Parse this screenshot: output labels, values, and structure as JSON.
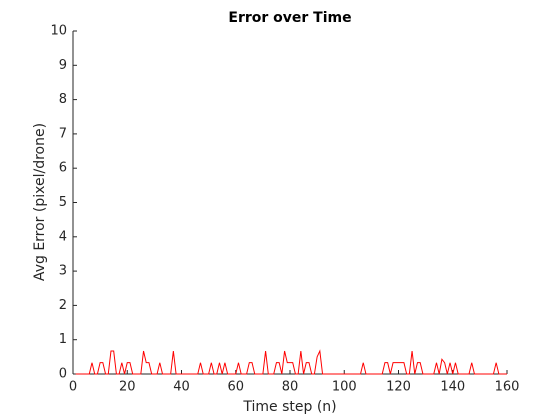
{
  "chart_data": {
    "type": "line",
    "title": "Error over Time",
    "x_label": "Time step (n)",
    "y_label": "Avg Error (pixel/drone)",
    "x": [
      1,
      2,
      3,
      4,
      5,
      6,
      7,
      8,
      9,
      10,
      11,
      12,
      13,
      14,
      15,
      16,
      17,
      18,
      19,
      20,
      21,
      22,
      23,
      24,
      25,
      26,
      27,
      28,
      29,
      30,
      31,
      32,
      33,
      34,
      35,
      36,
      37,
      38,
      39,
      40,
      41,
      42,
      43,
      44,
      45,
      46,
      47,
      48,
      49,
      50,
      51,
      52,
      53,
      54,
      55,
      56,
      57,
      58,
      59,
      60,
      61,
      62,
      63,
      64,
      65,
      66,
      67,
      68,
      69,
      70,
      71,
      72,
      73,
      74,
      75,
      76,
      77,
      78,
      79,
      80,
      81,
      82,
      83,
      84,
      85,
      86,
      87,
      88,
      89,
      90,
      91,
      92,
      93,
      94,
      95,
      96,
      97,
      98,
      99,
      100,
      101,
      102,
      103,
      104,
      105,
      106,
      107,
      108,
      109,
      110,
      111,
      112,
      113,
      114,
      115,
      116,
      117,
      118,
      119,
      120,
      121,
      122,
      123,
      124,
      125,
      126,
      127,
      128,
      129,
      130,
      131,
      132,
      133,
      134,
      135,
      136,
      137,
      138,
      139,
      140,
      141,
      142,
      143,
      144,
      145,
      146,
      147,
      148,
      149,
      150,
      151,
      152,
      153,
      154,
      155,
      156,
      157,
      158,
      159,
      160
    ],
    "series": [
      {
        "name": "Avg Error",
        "color": "#ff0000",
        "values": [
          0,
          0,
          0,
          0,
          0,
          0,
          0.33,
          0,
          0,
          0.33,
          0.33,
          0,
          0,
          0.67,
          0.67,
          0,
          0,
          0.33,
          0,
          0.33,
          0.33,
          0,
          0,
          0,
          0,
          0.67,
          0.33,
          0.33,
          0,
          0,
          0,
          0.33,
          0,
          0,
          0,
          0,
          0.67,
          0,
          0,
          0,
          0,
          0,
          0,
          0,
          0,
          0,
          0.33,
          0,
          0,
          0,
          0.33,
          0,
          0,
          0.33,
          0,
          0.33,
          0,
          0,
          0,
          0,
          0.33,
          0,
          0,
          0,
          0.33,
          0.33,
          0,
          0,
          0,
          0,
          0.67,
          0,
          0,
          0,
          0.33,
          0.33,
          0,
          0.67,
          0.33,
          0.33,
          0.33,
          0,
          0,
          0.67,
          0,
          0.33,
          0.33,
          0,
          0,
          0.5,
          0.67,
          0,
          0,
          0,
          0,
          0,
          0,
          0,
          0,
          0,
          0,
          0,
          0,
          0,
          0,
          0,
          0.33,
          0,
          0,
          0,
          0,
          0,
          0,
          0,
          0.33,
          0.33,
          0,
          0.33,
          0.33,
          0.33,
          0.33,
          0.33,
          0,
          0,
          0.67,
          0,
          0.33,
          0.33,
          0,
          0,
          0,
          0,
          0,
          0.33,
          0,
          0.43,
          0.33,
          0,
          0.33,
          0,
          0.33,
          0,
          0,
          0,
          0,
          0,
          0.33,
          0,
          0,
          0,
          0,
          0,
          0,
          0,
          0,
          0.33,
          0,
          0,
          0,
          0
        ]
      }
    ],
    "xlim": [
      0,
      160
    ],
    "xticks": [
      0,
      20,
      40,
      60,
      80,
      100,
      120,
      140,
      160
    ],
    "ylim": [
      0,
      10
    ],
    "yticks": [
      0,
      1,
      2,
      3,
      4,
      5,
      6,
      7,
      8,
      9,
      10
    ],
    "grid": false
  }
}
